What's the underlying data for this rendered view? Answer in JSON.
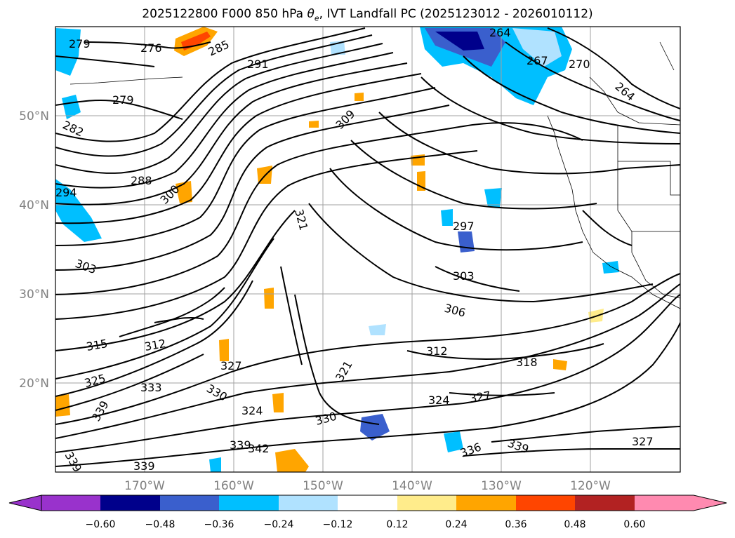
{
  "title": "2025122800 F000 850 hPa θe, IVT Landfall PC (2025123012 - 2026010112)",
  "title_parts": {
    "prefix": "2025122800 F000 850 hPa ",
    "symbol": "θ",
    "subscript": "e",
    "suffix": ", IVT Landfall PC (2025123012 - 2026010112)"
  },
  "map": {
    "lat_labels": [
      "50°N",
      "40°N",
      "30°N",
      "20°N"
    ],
    "lon_labels": [
      "170°W",
      "160°W",
      "150°W",
      "140°W",
      "130°W",
      "120°W"
    ],
    "contour_labels": [
      "279",
      "276",
      "285",
      "291",
      "264",
      "267",
      "270",
      "264",
      "279",
      "309",
      "282",
      "288",
      "300",
      "294",
      "321",
      "297",
      "303",
      "303",
      "306",
      "315",
      "312",
      "312",
      "327",
      "318",
      "325",
      "333",
      "330",
      "321",
      "324",
      "327",
      "339",
      "330",
      "324",
      "339",
      "342",
      "336",
      "339",
      "327",
      "339",
      "339"
    ]
  },
  "colorbar": {
    "colors": [
      "#9932cc",
      "#00008b",
      "#3a5fcd",
      "#00bfff",
      "#b0e2ff",
      "#ffffff",
      "#ffec8b",
      "#ffa500",
      "#ff4500",
      "#b22222",
      "#ff8ab0"
    ],
    "ticks": [
      "−0.60",
      "−0.48",
      "−0.36",
      "−0.24",
      "−0.12",
      "0.12",
      "0.24",
      "0.36",
      "0.48",
      "0.60"
    ]
  }
}
